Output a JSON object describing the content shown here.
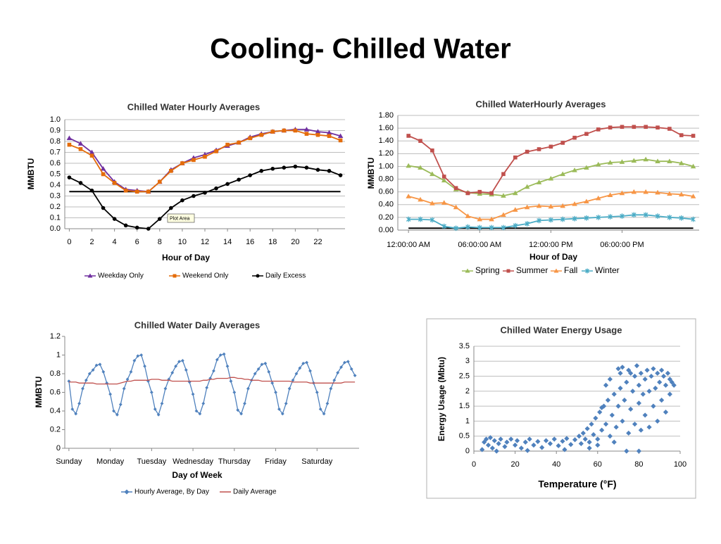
{
  "title": "Cooling- Chilled Water",
  "chart_data": [
    {
      "type": "line",
      "title": "Chilled Water Hourly Averages",
      "xlabel": "Hour of Day",
      "ylabel": "MMBTU",
      "x": [
        0,
        1,
        2,
        3,
        4,
        5,
        6,
        7,
        8,
        9,
        10,
        11,
        12,
        13,
        14,
        15,
        16,
        17,
        18,
        19,
        20,
        21,
        22,
        23,
        24
      ],
      "xlim": [
        -0.4,
        24.4
      ],
      "xticks": [
        0,
        2,
        4,
        6,
        8,
        10,
        12,
        14,
        16,
        18,
        20,
        22
      ],
      "ylim": [
        0,
        1
      ],
      "yticks": [
        {
          "value": 0,
          "label": "0.0"
        },
        0.1,
        0.2,
        0.3,
        0.4,
        0.5,
        0.6,
        0.7,
        0.8,
        0.9,
        {
          "value": 1,
          "label": "1.0"
        }
      ],
      "grid": true,
      "reference_line": 0.34,
      "annotation": "Plot Area",
      "series": [
        {
          "name": "Weekday Only",
          "color": "#7030a0",
          "marker": "triangle",
          "values": [
            0.83,
            0.78,
            0.7,
            0.55,
            0.43,
            0.36,
            0.35,
            0.34,
            0.43,
            0.54,
            0.6,
            0.65,
            0.68,
            0.72,
            0.76,
            0.79,
            0.84,
            0.87,
            0.89,
            0.9,
            0.91,
            0.91,
            0.89,
            0.88,
            0.85
          ]
        },
        {
          "name": "Weekend Only",
          "color": "#e46c0a",
          "marker": "square",
          "values": [
            0.77,
            0.73,
            0.67,
            0.5,
            0.42,
            0.35,
            0.34,
            0.34,
            0.43,
            0.53,
            0.6,
            0.63,
            0.66,
            0.71,
            0.77,
            0.79,
            0.83,
            0.86,
            0.89,
            0.9,
            0.9,
            0.87,
            0.86,
            0.85,
            0.81
          ]
        },
        {
          "name": "Daily Excess",
          "color": "#000000",
          "marker": "circle",
          "values": [
            0.47,
            0.42,
            0.35,
            0.19,
            0.09,
            0.03,
            0.01,
            0.0,
            0.09,
            0.19,
            0.26,
            0.3,
            0.33,
            0.37,
            0.41,
            0.45,
            0.49,
            0.53,
            0.55,
            0.56,
            0.57,
            0.56,
            0.54,
            0.53,
            0.49
          ]
        }
      ]
    },
    {
      "type": "line",
      "title": "Chilled WaterHourly Averages",
      "xlabel": "Hour of Day",
      "ylabel": "MMBTU",
      "x": [
        0,
        1,
        2,
        3,
        4,
        5,
        6,
        7,
        8,
        9,
        10,
        11,
        12,
        13,
        14,
        15,
        16,
        17,
        18,
        19,
        20,
        21,
        22,
        23,
        24
      ],
      "xlim": [
        -0.9,
        24.5
      ],
      "xticks": [
        {
          "value": 0,
          "label": "12:00:00 AM"
        },
        {
          "value": 6,
          "label": "06:00:00 AM"
        },
        {
          "value": 12,
          "label": "12:00:00 PM"
        },
        {
          "value": 18,
          "label": "06:00:00 PM"
        }
      ],
      "ylim": [
        0,
        1.8
      ],
      "yticks": [
        {
          "value": 0,
          "label": "0.00"
        },
        {
          "value": 0.2,
          "label": "0.20"
        },
        {
          "value": 0.4,
          "label": "0.40"
        },
        {
          "value": 0.6,
          "label": "0.60"
        },
        {
          "value": 0.8,
          "label": "0.80"
        },
        {
          "value": 1,
          "label": "1.00"
        },
        {
          "value": 1.2,
          "label": "1.20"
        },
        {
          "value": 1.4,
          "label": "1.40"
        },
        {
          "value": 1.6,
          "label": "1.60"
        },
        {
          "value": 1.8,
          "label": "1.80"
        }
      ],
      "grid": true,
      "reference_line": 0.03,
      "series": [
        {
          "name": "Spring",
          "color": "#9bbb59",
          "marker": "triangle",
          "values": [
            1.01,
            0.98,
            0.88,
            0.78,
            0.64,
            0.59,
            0.57,
            0.56,
            0.54,
            0.58,
            0.68,
            0.75,
            0.81,
            0.88,
            0.94,
            0.98,
            1.03,
            1.06,
            1.07,
            1.09,
            1.11,
            1.08,
            1.08,
            1.05,
            1.0
          ]
        },
        {
          "name": "Summer",
          "color": "#c0504d",
          "marker": "square",
          "values": [
            1.48,
            1.4,
            1.25,
            0.84,
            0.66,
            0.58,
            0.6,
            0.58,
            0.88,
            1.14,
            1.23,
            1.27,
            1.31,
            1.37,
            1.45,
            1.51,
            1.58,
            1.61,
            1.62,
            1.62,
            1.62,
            1.61,
            1.59,
            1.49,
            1.48
          ]
        },
        {
          "name": "Fall",
          "color": "#f79646",
          "marker": "triangle",
          "values": [
            0.53,
            0.48,
            0.42,
            0.43,
            0.36,
            0.22,
            0.17,
            0.17,
            0.24,
            0.32,
            0.36,
            0.38,
            0.37,
            0.38,
            0.41,
            0.45,
            0.5,
            0.55,
            0.58,
            0.6,
            0.6,
            0.59,
            0.57,
            0.56,
            0.53
          ]
        },
        {
          "name": "Winter",
          "color": "#4bacc6",
          "marker": "star",
          "values": [
            0.17,
            0.17,
            0.16,
            0.06,
            0.03,
            0.05,
            0.04,
            0.04,
            0.04,
            0.07,
            0.1,
            0.15,
            0.16,
            0.17,
            0.18,
            0.19,
            0.2,
            0.21,
            0.22,
            0.24,
            0.24,
            0.22,
            0.2,
            0.19,
            0.17
          ]
        }
      ]
    },
    {
      "type": "line",
      "title": "Chilled Water Daily Averages",
      "xlabel": "Day of Week",
      "ylabel": "MMBTU",
      "xlim": [
        -1.2,
        84.2
      ],
      "xticks": [
        {
          "value": 0,
          "label": "Sunday"
        },
        {
          "value": 12,
          "label": "Monday"
        },
        {
          "value": 24,
          "label": "Tuesday"
        },
        {
          "value": 36,
          "label": "Wednesday"
        },
        {
          "value": 48,
          "label": "Thursday"
        },
        {
          "value": 60,
          "label": "Friday"
        },
        {
          "value": 72,
          "label": "Saturday"
        }
      ],
      "ylim": [
        0,
        1.2
      ],
      "yticks": [
        0,
        0.2,
        0.4,
        0.6,
        0.8,
        1,
        1.2
      ],
      "grid": false,
      "series": [
        {
          "name": "Hourly Average, By Day",
          "color": "#4f81bd",
          "marker": "diamond",
          "values": [
            0.72,
            0.42,
            0.37,
            0.48,
            0.64,
            0.73,
            0.8,
            0.84,
            0.89,
            0.9,
            0.82,
            0.7,
            0.58,
            0.4,
            0.36,
            0.47,
            0.64,
            0.74,
            0.82,
            0.94,
            0.99,
            1.0,
            0.88,
            0.72,
            0.6,
            0.42,
            0.36,
            0.48,
            0.64,
            0.74,
            0.81,
            0.88,
            0.93,
            0.94,
            0.84,
            0.71,
            0.58,
            0.4,
            0.37,
            0.48,
            0.65,
            0.75,
            0.83,
            0.95,
            1.0,
            1.01,
            0.88,
            0.72,
            0.6,
            0.41,
            0.37,
            0.48,
            0.64,
            0.73,
            0.8,
            0.85,
            0.9,
            0.91,
            0.82,
            0.7,
            0.6,
            0.42,
            0.37,
            0.48,
            0.64,
            0.73,
            0.8,
            0.86,
            0.91,
            0.92,
            0.83,
            0.7,
            0.6,
            0.42,
            0.37,
            0.48,
            0.64,
            0.73,
            0.81,
            0.87,
            0.92,
            0.93,
            0.85,
            0.78
          ]
        },
        {
          "name": "Daily Average",
          "color": "#c0504d",
          "marker": "none",
          "values": [
            0.71,
            0.71,
            0.71,
            0.7,
            0.7,
            0.7,
            0.7,
            0.7,
            0.69,
            0.69,
            0.69,
            0.69,
            0.69,
            0.69,
            0.69,
            0.7,
            0.71,
            0.72,
            0.72,
            0.73,
            0.73,
            0.73,
            0.73,
            0.73,
            0.74,
            0.74,
            0.74,
            0.73,
            0.73,
            0.73,
            0.72,
            0.72,
            0.72,
            0.72,
            0.72,
            0.72,
            0.72,
            0.72,
            0.72,
            0.73,
            0.73,
            0.74,
            0.74,
            0.75,
            0.75,
            0.75,
            0.75,
            0.76,
            0.76,
            0.75,
            0.75,
            0.74,
            0.74,
            0.73,
            0.73,
            0.73,
            0.72,
            0.72,
            0.72,
            0.72,
            0.72,
            0.72,
            0.72,
            0.72,
            0.72,
            0.71,
            0.71,
            0.71,
            0.71,
            0.71,
            0.7,
            0.7,
            0.7,
            0.7,
            0.7,
            0.7,
            0.7,
            0.7,
            0.7,
            0.7,
            0.71,
            0.71,
            0.71,
            0.71
          ]
        }
      ]
    },
    {
      "type": "scatter",
      "title": "Chilled Water Energy Usage",
      "xlabel": "Temperature (°F)",
      "ylabel": "Energy Usage (Mbtu)",
      "xlim": [
        0,
        100
      ],
      "xticks": [
        0,
        20,
        40,
        60,
        80,
        100
      ],
      "ylim": [
        0,
        3.5
      ],
      "yticks": [
        0,
        0.5,
        1,
        1.5,
        2,
        2.5,
        3,
        3.5
      ],
      "grid": true,
      "color": "#4f81bd",
      "x": [
        4,
        5,
        6,
        7,
        8,
        9,
        10,
        12,
        13,
        15,
        16,
        18,
        20,
        21,
        23,
        25,
        27,
        29,
        31,
        33,
        35,
        37,
        39,
        41,
        43,
        45,
        47,
        49,
        11,
        26,
        44,
        51,
        52,
        53,
        54,
        55,
        56,
        57,
        58,
        59,
        60,
        61,
        62,
        63,
        64,
        65,
        66,
        66,
        67,
        68,
        69,
        70,
        70,
        71,
        72,
        72,
        73,
        74,
        75,
        75,
        76,
        77,
        78,
        78,
        79,
        80,
        80,
        81,
        81,
        82,
        83,
        83,
        84,
        85,
        85,
        86,
        87,
        87,
        88,
        89,
        89,
        90,
        91,
        91,
        92,
        93,
        93,
        94,
        95,
        95,
        96,
        97,
        62,
        68,
        74,
        80,
        60,
        56,
        76,
        71,
        64
      ],
      "values": [
        0.05,
        0.3,
        0.4,
        0.2,
        0.45,
        0.1,
        0.35,
        0.25,
        0.4,
        0.15,
        0.3,
        0.4,
        0.2,
        0.35,
        0.1,
        0.3,
        0.4,
        0.2,
        0.32,
        0.12,
        0.35,
        0.25,
        0.4,
        0.18,
        0.33,
        0.42,
        0.22,
        0.38,
        0,
        0.02,
        0.05,
        0.5,
        0.25,
        0.6,
        0.4,
        0.75,
        0.3,
        0.9,
        0.55,
        1.1,
        0.4,
        1.3,
        0.7,
        1.5,
        0.9,
        1.7,
        0.5,
        2.4,
        1.2,
        1.9,
        0.8,
        2.75,
        1.5,
        2.1,
        1.0,
        2.8,
        1.7,
        2.3,
        0.6,
        2.7,
        1.4,
        2.0,
        2.5,
        0.9,
        2.85,
        1.6,
        2.2,
        0.7,
        2.6,
        1.9,
        2.4,
        1.2,
        2.7,
        2.0,
        0.8,
        2.5,
        1.5,
        2.75,
        2.1,
        2.6,
        1.0,
        2.3,
        2.7,
        1.7,
        2.5,
        2.2,
        1.3,
        2.6,
        2.4,
        1.9,
        2.3,
        2.2,
        1.45,
        0.3,
        0,
        0,
        0.2,
        0.1,
        2.6,
        2.6,
        2.2
      ]
    }
  ]
}
